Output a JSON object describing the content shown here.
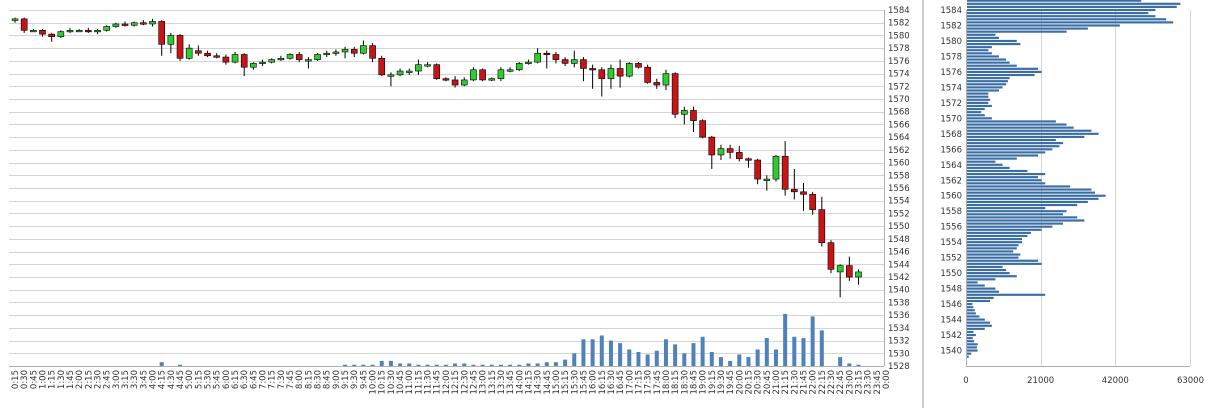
{
  "colors": {
    "up_fill": "#2ecc2e",
    "down_fill": "#c81414",
    "volume": "#4f81bd",
    "profile": "#3a6ea5",
    "grid": "#d4d4d4",
    "axis_text": "#333333"
  },
  "chart_data": [
    {
      "type": "candlestick",
      "ylim": [
        1528,
        1584
      ],
      "y_ticks": [
        1528,
        1530,
        1532,
        1534,
        1536,
        1538,
        1540,
        1542,
        1544,
        1546,
        1548,
        1550,
        1552,
        1554,
        1556,
        1558,
        1560,
        1562,
        1564,
        1566,
        1568,
        1570,
        1572,
        1574,
        1576,
        1578,
        1580,
        1582,
        1584
      ],
      "x_labels": [
        "0:15",
        "0:30",
        "0:45",
        "1:00",
        "1:15",
        "1:30",
        "1:45",
        "2:00",
        "2:15",
        "2:30",
        "2:45",
        "3:00",
        "3:15",
        "3:30",
        "3:45",
        "4:00",
        "4:15",
        "4:30",
        "4:45",
        "5:00",
        "5:15",
        "5:30",
        "5:45",
        "6:00",
        "6:15",
        "6:30",
        "6:45",
        "7:00",
        "7:15",
        "7:30",
        "7:45",
        "8:00",
        "8:15",
        "8:30",
        "8:45",
        "9:00",
        "9:15",
        "9:30",
        "9:45",
        "10:00",
        "10:15",
        "10:30",
        "10:45",
        "11:00",
        "11:15",
        "11:30",
        "11:45",
        "12:00",
        "12:15",
        "12:30",
        "12:45",
        "13:00",
        "13:15",
        "13:30",
        "13:45",
        "14:00",
        "14:15",
        "14:30",
        "14:45",
        "15:00",
        "15:15",
        "15:30",
        "15:45",
        "16:00",
        "16:15",
        "16:30",
        "16:45",
        "17:00",
        "17:15",
        "17:30",
        "17:45",
        "18:00",
        "18:15",
        "18:30",
        "18:45",
        "19:00",
        "19:15",
        "19:30",
        "19:45",
        "20:00",
        "20:15",
        "20:30",
        "20:45",
        "21:00",
        "21:15",
        "21:30",
        "21:45",
        "22:00",
        "22:15",
        "22:30",
        "22:45",
        "23:00",
        "23:15",
        "23:30",
        "23:45",
        "0:00"
      ],
      "volume_ylim": [
        1528,
        1538
      ],
      "candles": [
        {
          "o": 1582.4,
          "h": 1582.8,
          "l": 1582.0,
          "c": 1582.6
        },
        {
          "o": 1582.6,
          "h": 1582.8,
          "l": 1580.4,
          "c": 1580.8
        },
        {
          "o": 1580.8,
          "h": 1581.0,
          "l": 1580.6,
          "c": 1580.8
        },
        {
          "o": 1580.8,
          "h": 1581.0,
          "l": 1579.8,
          "c": 1580.2
        },
        {
          "o": 1580.2,
          "h": 1580.4,
          "l": 1579.0,
          "c": 1579.8
        },
        {
          "o": 1579.8,
          "h": 1580.8,
          "l": 1579.6,
          "c": 1580.6
        },
        {
          "o": 1580.6,
          "h": 1581.2,
          "l": 1580.4,
          "c": 1580.8
        },
        {
          "o": 1580.8,
          "h": 1581.0,
          "l": 1580.6,
          "c": 1580.8
        },
        {
          "o": 1580.8,
          "h": 1581.2,
          "l": 1580.4,
          "c": 1580.6
        },
        {
          "o": 1580.6,
          "h": 1581.0,
          "l": 1580.2,
          "c": 1580.8
        },
        {
          "o": 1580.8,
          "h": 1581.6,
          "l": 1580.6,
          "c": 1581.4
        },
        {
          "o": 1581.4,
          "h": 1582.0,
          "l": 1581.2,
          "c": 1581.8
        },
        {
          "o": 1581.8,
          "h": 1582.2,
          "l": 1581.4,
          "c": 1581.6
        },
        {
          "o": 1581.6,
          "h": 1582.2,
          "l": 1581.4,
          "c": 1582.0
        },
        {
          "o": 1582.0,
          "h": 1582.4,
          "l": 1581.6,
          "c": 1581.8
        },
        {
          "o": 1581.8,
          "h": 1582.6,
          "l": 1581.4,
          "c": 1582.2
        },
        {
          "o": 1582.2,
          "h": 1582.4,
          "l": 1576.8,
          "c": 1578.6
        },
        {
          "o": 1578.6,
          "h": 1580.4,
          "l": 1577.2,
          "c": 1580.0
        },
        {
          "o": 1580.0,
          "h": 1580.2,
          "l": 1576.0,
          "c": 1576.4
        },
        {
          "o": 1576.4,
          "h": 1578.6,
          "l": 1576.2,
          "c": 1578.0
        },
        {
          "o": 1577.6,
          "h": 1578.4,
          "l": 1576.8,
          "c": 1577.2
        },
        {
          "o": 1577.2,
          "h": 1577.6,
          "l": 1576.6,
          "c": 1576.8
        },
        {
          "o": 1576.8,
          "h": 1577.2,
          "l": 1576.4,
          "c": 1576.6
        },
        {
          "o": 1576.6,
          "h": 1577.0,
          "l": 1575.4,
          "c": 1575.8
        },
        {
          "o": 1575.8,
          "h": 1577.4,
          "l": 1575.6,
          "c": 1577.0
        },
        {
          "o": 1577.0,
          "h": 1577.2,
          "l": 1573.6,
          "c": 1575.0
        },
        {
          "o": 1575.0,
          "h": 1575.8,
          "l": 1574.6,
          "c": 1575.6
        },
        {
          "o": 1575.6,
          "h": 1576.2,
          "l": 1575.2,
          "c": 1575.8
        },
        {
          "o": 1575.8,
          "h": 1576.4,
          "l": 1575.6,
          "c": 1576.2
        },
        {
          "o": 1576.2,
          "h": 1576.8,
          "l": 1576.0,
          "c": 1576.4
        },
        {
          "o": 1576.4,
          "h": 1577.2,
          "l": 1576.2,
          "c": 1577.0
        },
        {
          "o": 1577.0,
          "h": 1577.4,
          "l": 1575.8,
          "c": 1576.2
        },
        {
          "o": 1576.2,
          "h": 1576.6,
          "l": 1574.8,
          "c": 1576.2
        },
        {
          "o": 1576.2,
          "h": 1577.2,
          "l": 1576.0,
          "c": 1577.0
        },
        {
          "o": 1577.0,
          "h": 1577.6,
          "l": 1576.6,
          "c": 1577.2
        },
        {
          "o": 1577.2,
          "h": 1577.8,
          "l": 1576.8,
          "c": 1577.4
        },
        {
          "o": 1577.4,
          "h": 1578.2,
          "l": 1576.4,
          "c": 1577.8
        },
        {
          "o": 1577.8,
          "h": 1578.2,
          "l": 1576.6,
          "c": 1577.2
        },
        {
          "o": 1577.2,
          "h": 1579.2,
          "l": 1577.0,
          "c": 1578.4
        },
        {
          "o": 1578.4,
          "h": 1578.8,
          "l": 1575.8,
          "c": 1576.4
        },
        {
          "o": 1576.4,
          "h": 1576.8,
          "l": 1573.6,
          "c": 1573.8
        },
        {
          "o": 1573.8,
          "h": 1574.2,
          "l": 1572.0,
          "c": 1573.8
        },
        {
          "o": 1573.8,
          "h": 1574.8,
          "l": 1573.6,
          "c": 1574.4
        },
        {
          "o": 1574.4,
          "h": 1574.8,
          "l": 1573.8,
          "c": 1574.4
        },
        {
          "o": 1574.4,
          "h": 1576.2,
          "l": 1573.8,
          "c": 1575.4
        },
        {
          "o": 1575.4,
          "h": 1575.8,
          "l": 1575.0,
          "c": 1575.4
        },
        {
          "o": 1575.4,
          "h": 1575.6,
          "l": 1573.0,
          "c": 1573.2
        },
        {
          "o": 1573.2,
          "h": 1573.4,
          "l": 1572.8,
          "c": 1573.0
        },
        {
          "o": 1573.0,
          "h": 1573.6,
          "l": 1571.8,
          "c": 1572.2
        },
        {
          "o": 1572.2,
          "h": 1573.4,
          "l": 1572.0,
          "c": 1573.0
        },
        {
          "o": 1573.0,
          "h": 1575.0,
          "l": 1572.8,
          "c": 1574.6
        },
        {
          "o": 1574.6,
          "h": 1574.8,
          "l": 1572.8,
          "c": 1573.0
        },
        {
          "o": 1573.0,
          "h": 1573.4,
          "l": 1572.8,
          "c": 1573.2
        },
        {
          "o": 1573.2,
          "h": 1575.0,
          "l": 1572.8,
          "c": 1574.6
        },
        {
          "o": 1574.6,
          "h": 1575.0,
          "l": 1574.2,
          "c": 1574.6
        },
        {
          "o": 1574.6,
          "h": 1575.8,
          "l": 1574.4,
          "c": 1575.6
        },
        {
          "o": 1575.6,
          "h": 1576.2,
          "l": 1575.4,
          "c": 1575.8
        },
        {
          "o": 1575.8,
          "h": 1578.0,
          "l": 1575.6,
          "c": 1577.2
        },
        {
          "o": 1577.2,
          "h": 1577.6,
          "l": 1574.8,
          "c": 1577.0
        },
        {
          "o": 1577.0,
          "h": 1577.4,
          "l": 1575.6,
          "c": 1576.2
        },
        {
          "o": 1576.2,
          "h": 1576.6,
          "l": 1575.2,
          "c": 1575.6
        },
        {
          "o": 1575.6,
          "h": 1577.6,
          "l": 1575.0,
          "c": 1576.2
        },
        {
          "o": 1576.2,
          "h": 1576.6,
          "l": 1572.8,
          "c": 1574.8
        },
        {
          "o": 1574.8,
          "h": 1575.4,
          "l": 1571.6,
          "c": 1574.6
        },
        {
          "o": 1574.6,
          "h": 1575.0,
          "l": 1570.4,
          "c": 1573.2
        },
        {
          "o": 1573.2,
          "h": 1575.4,
          "l": 1571.6,
          "c": 1574.8
        },
        {
          "o": 1574.8,
          "h": 1576.2,
          "l": 1571.8,
          "c": 1573.6
        },
        {
          "o": 1573.6,
          "h": 1575.8,
          "l": 1573.4,
          "c": 1575.6
        },
        {
          "o": 1575.6,
          "h": 1575.8,
          "l": 1574.8,
          "c": 1575.0
        },
        {
          "o": 1575.0,
          "h": 1575.4,
          "l": 1572.4,
          "c": 1572.6
        },
        {
          "o": 1572.6,
          "h": 1573.2,
          "l": 1571.6,
          "c": 1572.2
        },
        {
          "o": 1572.2,
          "h": 1574.6,
          "l": 1571.4,
          "c": 1574.0
        },
        {
          "o": 1574.0,
          "h": 1574.2,
          "l": 1567.0,
          "c": 1567.6
        },
        {
          "o": 1567.6,
          "h": 1568.8,
          "l": 1566.0,
          "c": 1568.2
        },
        {
          "o": 1568.2,
          "h": 1568.8,
          "l": 1564.8,
          "c": 1566.6
        },
        {
          "o": 1566.6,
          "h": 1566.8,
          "l": 1563.8,
          "c": 1564.0
        },
        {
          "o": 1564.0,
          "h": 1564.2,
          "l": 1559.0,
          "c": 1561.2
        },
        {
          "o": 1561.2,
          "h": 1562.8,
          "l": 1560.4,
          "c": 1562.2
        },
        {
          "o": 1562.2,
          "h": 1562.8,
          "l": 1560.6,
          "c": 1561.6
        },
        {
          "o": 1561.6,
          "h": 1562.6,
          "l": 1560.2,
          "c": 1560.6
        },
        {
          "o": 1560.6,
          "h": 1560.8,
          "l": 1559.2,
          "c": 1560.4
        },
        {
          "o": 1560.4,
          "h": 1560.6,
          "l": 1556.6,
          "c": 1557.4
        },
        {
          "o": 1557.4,
          "h": 1558.0,
          "l": 1555.6,
          "c": 1557.4
        },
        {
          "o": 1557.4,
          "h": 1561.2,
          "l": 1557.0,
          "c": 1561.0
        },
        {
          "o": 1561.0,
          "h": 1563.4,
          "l": 1554.8,
          "c": 1555.8
        },
        {
          "o": 1555.8,
          "h": 1559.0,
          "l": 1554.2,
          "c": 1555.4
        },
        {
          "o": 1555.4,
          "h": 1556.8,
          "l": 1552.4,
          "c": 1555.0
        },
        {
          "o": 1555.0,
          "h": 1555.4,
          "l": 1551.8,
          "c": 1552.6
        },
        {
          "o": 1552.6,
          "h": 1554.6,
          "l": 1546.8,
          "c": 1547.4
        },
        {
          "o": 1547.4,
          "h": 1547.8,
          "l": 1542.6,
          "c": 1543.2
        },
        {
          "o": 1542.8,
          "h": 1544.0,
          "l": 1538.8,
          "c": 1543.8
        },
        {
          "o": 1543.8,
          "h": 1545.2,
          "l": 1541.4,
          "c": 1542.0
        },
        {
          "o": 1542.0,
          "h": 1543.2,
          "l": 1540.8,
          "c": 1542.8
        }
      ],
      "volume": [
        0,
        0,
        0,
        0,
        0,
        0,
        0,
        0,
        0,
        0,
        0,
        0,
        0,
        0,
        0,
        0,
        0.6,
        0,
        0.2,
        0,
        0,
        0,
        0,
        0,
        0,
        0,
        0,
        0,
        0,
        0,
        0,
        0,
        0,
        0,
        0,
        0,
        0.2,
        0.2,
        0.2,
        0.2,
        0.8,
        0.8,
        0.4,
        0.4,
        0.2,
        0.2,
        0.2,
        0.2,
        0.4,
        0.4,
        0.2,
        0.2,
        0.2,
        0.2,
        0.2,
        0.2,
        0.4,
        0.4,
        0.6,
        0.6,
        1.0,
        2.0,
        4.2,
        4.2,
        4.8,
        4.0,
        3.6,
        2.6,
        2.2,
        1.8,
        2.4,
        4.2,
        3.4,
        2.0,
        3.6,
        4.6,
        2.2,
        1.4,
        0.8,
        1.8,
        1.4,
        2.6,
        4.4,
        2.6,
        8.2,
        4.6,
        4.4,
        7.8,
        5.6,
        0,
        1.4,
        0.4,
        0.2,
        0,
        0,
        0
      ],
      "y_axis_side": "right"
    },
    {
      "type": "bar",
      "orientation": "horizontal",
      "xlim": [
        0,
        63000
      ],
      "x_ticks": [
        0,
        21000,
        42000,
        63000
      ],
      "ylim": [
        1538,
        1584
      ],
      "y_ticks": [
        1540,
        1542,
        1544,
        1546,
        1548,
        1550,
        1552,
        1554,
        1556,
        1558,
        1560,
        1562,
        1564,
        1566,
        1568,
        1570,
        1572,
        1574,
        1576,
        1578,
        1580,
        1582,
        1584
      ],
      "bin_size": 0.4,
      "levels_start": 1539.2,
      "values": [
        500,
        1200,
        3000,
        2800,
        3000,
        2000,
        1600,
        2500,
        1800,
        5000,
        7000,
        6500,
        5000,
        3500,
        2500,
        2200,
        1800,
        1500,
        6500,
        7500,
        22000,
        9000,
        8000,
        5000,
        3000,
        8000,
        14000,
        12000,
        11000,
        10000,
        21000,
        20000,
        14500,
        15000,
        13000,
        14000,
        14500,
        15500,
        15500,
        17000,
        18000,
        21000,
        24000,
        27000,
        33000,
        31000,
        27000,
        28000,
        22000,
        31000,
        34000,
        37000,
        39000,
        36000,
        35000,
        29000,
        22000,
        21000,
        20000,
        22000,
        17000,
        12000,
        10000,
        8000,
        14000,
        20000,
        22000,
        24000,
        26000,
        27000,
        25000,
        33000,
        37000,
        35000,
        30000,
        28000,
        25000,
        7000,
        5000,
        4000,
        5000,
        7000,
        6000,
        6500,
        6000,
        6000,
        9000,
        10000,
        11000,
        11500,
        12000,
        19000,
        21000,
        20000,
        14000,
        12000,
        11000,
        9000,
        7000,
        6000,
        7000,
        15000,
        14000,
        9000,
        8000,
        28000,
        34000,
        43000,
        58000,
        56000,
        53000,
        51000,
        53000,
        59000,
        60000,
        49000,
        44000,
        36000,
        38000,
        40000,
        30000,
        26000,
        22000,
        20000,
        13000,
        10000,
        6000,
        4000,
        3000,
        2000,
        1500,
        1200,
        1000,
        4000,
        3000,
        2000,
        1500,
        4500,
        4500,
        3500,
        5000,
        4000,
        3000,
        2000,
        1000,
        800,
        500,
        400
      ]
    }
  ]
}
